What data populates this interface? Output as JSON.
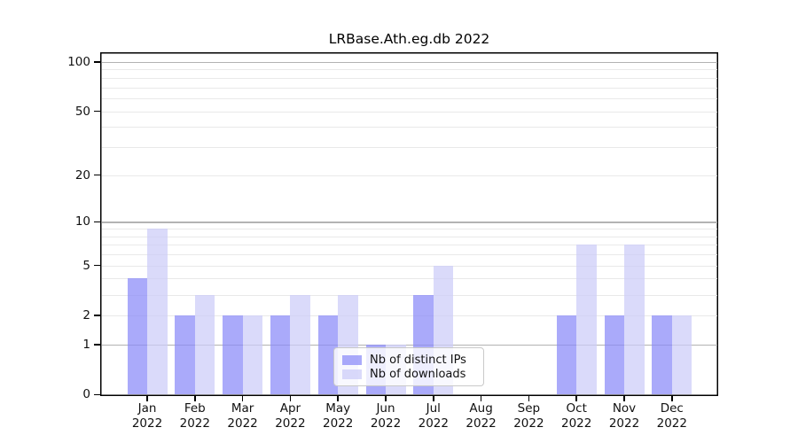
{
  "chart_data": {
    "type": "bar",
    "title": "LRBase.Ath.eg.db 2022",
    "categories": [
      {
        "month": "Jan",
        "year": "2022"
      },
      {
        "month": "Feb",
        "year": "2022"
      },
      {
        "month": "Mar",
        "year": "2022"
      },
      {
        "month": "Apr",
        "year": "2022"
      },
      {
        "month": "May",
        "year": "2022"
      },
      {
        "month": "Jun",
        "year": "2022"
      },
      {
        "month": "Jul",
        "year": "2022"
      },
      {
        "month": "Aug",
        "year": "2022"
      },
      {
        "month": "Sep",
        "year": "2022"
      },
      {
        "month": "Oct",
        "year": "2022"
      },
      {
        "month": "Nov",
        "year": "2022"
      },
      {
        "month": "Dec",
        "year": "2022"
      }
    ],
    "series": [
      {
        "id": "distinct-ips",
        "name": "Nb of distinct IPs",
        "color": "#8989f8",
        "alpha": 0.72,
        "values": [
          4,
          2,
          2,
          2,
          2,
          1,
          3,
          0,
          0,
          2,
          2,
          2
        ]
      },
      {
        "id": "downloads",
        "name": "Nb of downloads",
        "color": "#ccccf8",
        "alpha": 0.72,
        "values": [
          9,
          3,
          2,
          3,
          3,
          1,
          5,
          0,
          0,
          7,
          7,
          2
        ]
      }
    ],
    "xlabel": "",
    "ylabel": "",
    "y_scale": "log10(1+x)",
    "ylim": [
      0,
      115
    ],
    "y_ticks": [
      0,
      1,
      2,
      5,
      10,
      20,
      50,
      100
    ],
    "y_major_gridlines": [
      1,
      10,
      100
    ],
    "y_minor_gridlines": [
      2,
      3,
      4,
      5,
      6,
      7,
      8,
      9,
      20,
      30,
      40,
      50,
      60,
      70,
      80,
      90
    ],
    "grid": true,
    "legend_position": "lower center inside",
    "colors": {
      "major_grid": "#b3b3b3",
      "minor_grid": "#e9e9e9",
      "axis": "#000000",
      "background": "#ffffff"
    }
  }
}
